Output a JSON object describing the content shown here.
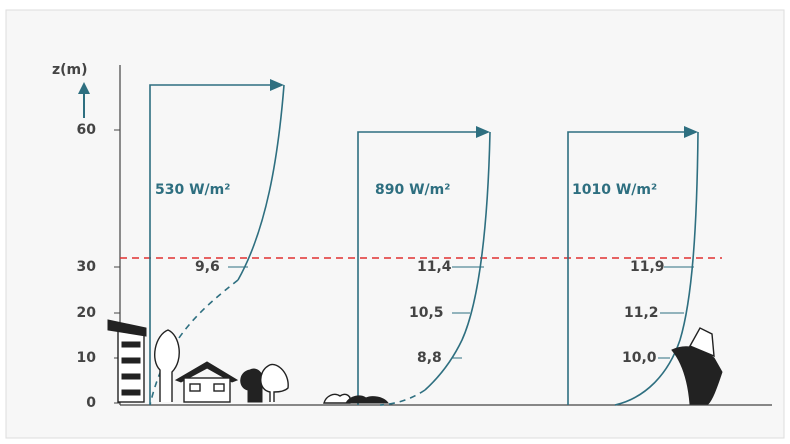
{
  "y_axis": {
    "label": "z(m)",
    "ticks": [
      "0",
      "10",
      "20",
      "30",
      "60"
    ]
  },
  "profiles": [
    {
      "irradiance": "530 W/m²",
      "speeds": [
        "9,6"
      ]
    },
    {
      "irradiance": "890 W/m²",
      "speeds": [
        "11,4",
        "10,5",
        "8,8"
      ]
    },
    {
      "irradiance": "1010 W/m²",
      "speeds": [
        "11,9",
        "11,2",
        "10,0"
      ]
    }
  ]
}
